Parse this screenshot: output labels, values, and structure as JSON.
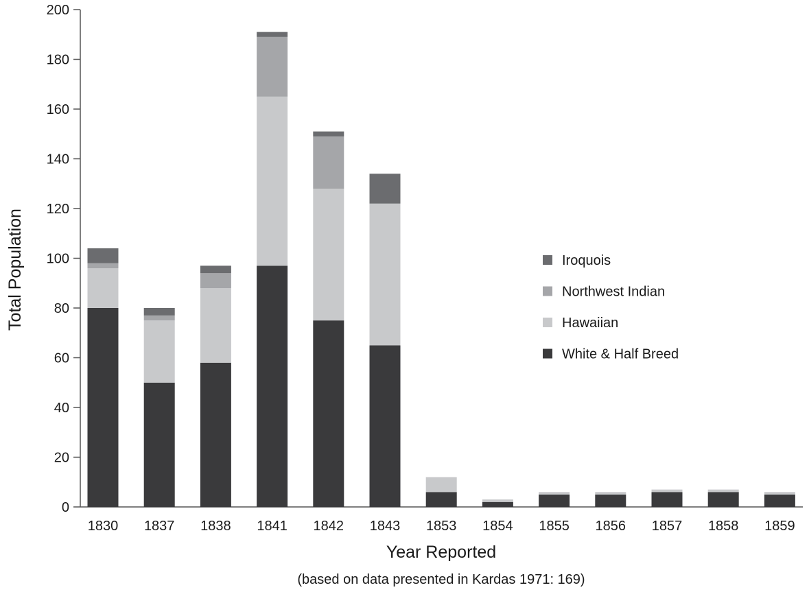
{
  "chart_data": {
    "type": "bar",
    "stacked": true,
    "title": "",
    "xlabel": "Year Reported",
    "ylabel": "Total Population",
    "caption": "(based on data presented in Kardas 1971: 169)",
    "ylim": [
      0,
      200
    ],
    "yticks": [
      0,
      20,
      40,
      60,
      80,
      100,
      120,
      140,
      160,
      180,
      200
    ],
    "grid": false,
    "legend_position": "right",
    "categories": [
      "1830",
      "1837",
      "1838",
      "1841",
      "1842",
      "1843",
      "1853",
      "1854",
      "1855",
      "1856",
      "1857",
      "1858",
      "1859"
    ],
    "series": [
      {
        "name": "White & Half Breed",
        "color": "#3a3a3c",
        "values": [
          80,
          50,
          58,
          97,
          75,
          65,
          6,
          2,
          5,
          5,
          6,
          6,
          5
        ]
      },
      {
        "name": "Hawaiian",
        "color": "#c8c9cb",
        "values": [
          16,
          25,
          30,
          68,
          53,
          57,
          6,
          1,
          1,
          1,
          1,
          1,
          1
        ]
      },
      {
        "name": "Northwest Indian",
        "color": "#a5a6a9",
        "values": [
          2,
          2,
          6,
          24,
          21,
          0,
          0,
          0,
          0,
          0,
          0,
          0,
          0
        ]
      },
      {
        "name": "Iroquois",
        "color": "#6b6c6f",
        "values": [
          6,
          3,
          3,
          2,
          2,
          12,
          0,
          0,
          0,
          0,
          0,
          0,
          0
        ]
      }
    ],
    "legend_order": [
      "Iroquois",
      "Northwest Indian",
      "Hawaiian",
      "White & Half Breed"
    ]
  }
}
